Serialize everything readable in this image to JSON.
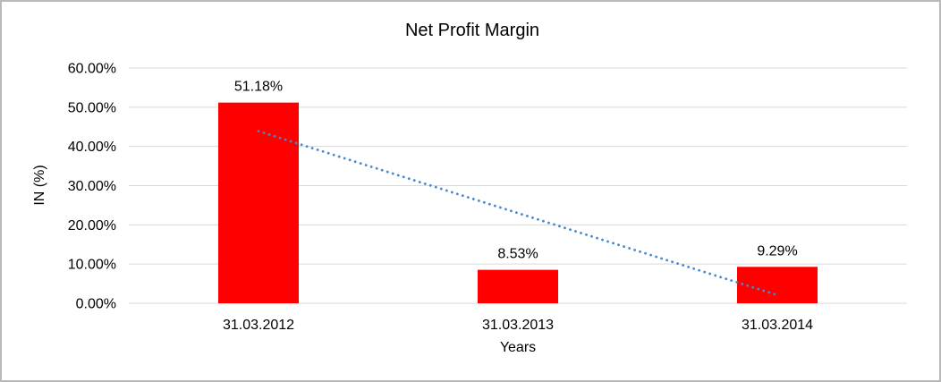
{
  "chart_data": {
    "type": "bar",
    "title": "Net Profit Margin",
    "categories": [
      "31.03.2012",
      "31.03.2013",
      "31.03.2014"
    ],
    "values": [
      51.18,
      8.53,
      9.29
    ],
    "data_labels": [
      "51.18%",
      "8.53%",
      "9.29%"
    ],
    "xlabel": "Years",
    "ylabel": "IN (%)",
    "ylim": [
      0,
      60
    ],
    "ytick_step": 10,
    "ytick_labels": [
      "0.00%",
      "10.00%",
      "20.00%",
      "30.00%",
      "40.00%",
      "50.00%",
      "60.00%"
    ],
    "legend": "none",
    "grid": "horizontal",
    "bar_color": "#ff0000",
    "gridline_color": "#d9d9d9",
    "text_color": "#000000",
    "trendline": {
      "type": "linear",
      "style": "dotted",
      "color": "#4e86c8",
      "start_value": 43.9,
      "end_value": 2.1
    }
  }
}
